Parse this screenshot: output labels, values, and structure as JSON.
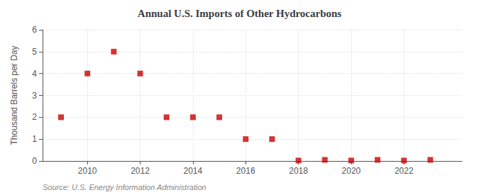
{
  "chart_data": {
    "type": "scatter",
    "title": "Annual U.S. Imports of Other Hydrocarbons",
    "ylabel": "Thousand Barrels per Day",
    "annotation": "Source: U.S. Energy Information Administration",
    "x": [
      2009,
      2010,
      2011,
      2012,
      2013,
      2014,
      2015,
      2016,
      2017,
      2018,
      2019,
      2020,
      2021,
      2022,
      2023
    ],
    "values": [
      2,
      4,
      5,
      4,
      2,
      2,
      2,
      1,
      1,
      0.02,
      0.05,
      0.02,
      0.05,
      0.02,
      0.05
    ],
    "color": "#cc0000",
    "marker": "square",
    "xlim": [
      2008.3,
      2024.2
    ],
    "xticks": [
      2010,
      2012,
      2014,
      2016,
      2018,
      2020,
      2022
    ],
    "ylim": [
      0,
      6
    ],
    "yticks": [
      0,
      1,
      2,
      3,
      4,
      5,
      6
    ],
    "grid": true
  }
}
